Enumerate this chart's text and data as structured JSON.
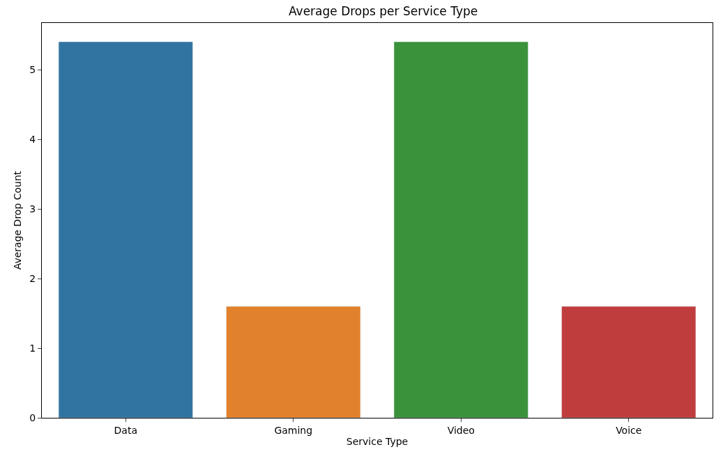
{
  "chart_data": {
    "type": "bar",
    "title": "Average Drops per Service Type",
    "xlabel": "Service Type",
    "ylabel": "Average Drop Count",
    "categories": [
      "Data",
      "Gaming",
      "Video",
      "Voice"
    ],
    "values": [
      5.4,
      1.6,
      5.4,
      1.6
    ],
    "colors": [
      "#3274a1",
      "#e1812c",
      "#3a923a",
      "#c03d3e"
    ],
    "ylim": [
      0,
      5.67
    ],
    "yticks": [
      0,
      1,
      2,
      3,
      4,
      5
    ]
  }
}
